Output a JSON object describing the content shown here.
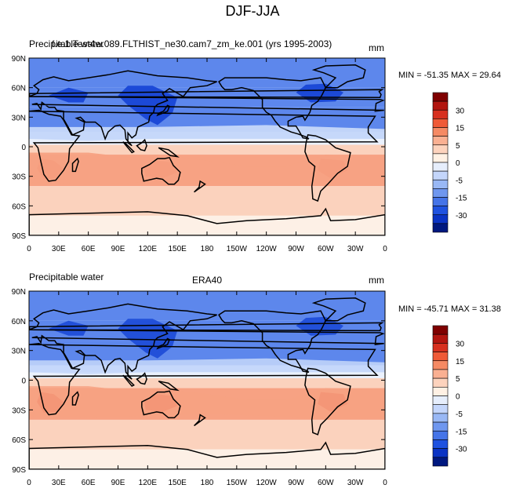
{
  "title": "DJF-JJA",
  "panels": [
    {
      "left_label": "Precipitable water",
      "case_label": "f.e.1.Test4w.089.FLTHIST_ne30.cam7_zm_ke.001 (yrs 1995-2003)",
      "case_label_display": "f.e.4w.089.FLTHIST_ne30.cam7_zm_ke.001 (yrs 1995-2003)",
      "units": "mm",
      "minmax": "MIN = -51.35 MAX =  29.64"
    },
    {
      "left_label": "Precipitable water",
      "case_label": "ERA40",
      "units": "mm",
      "minmax": "MIN = -45.71 MAX = 31.38"
    }
  ],
  "axes": {
    "lat_ticks": [
      "90N",
      "60N",
      "30N",
      "0",
      "30S",
      "60S",
      "90S"
    ],
    "lon_ticks": [
      "0",
      "30E",
      "60E",
      "90E",
      "120E",
      "150E",
      "180",
      "150W",
      "120W",
      "90W",
      "60W",
      "30W",
      "0"
    ]
  },
  "colorbar": {
    "labels": [
      "30",
      "15",
      "5",
      "0",
      "-5",
      "-15",
      "-30"
    ],
    "colors": [
      "#7f0000",
      "#b2150f",
      "#d7301f",
      "#ef5a37",
      "#f58a64",
      "#fab092",
      "#fdd3bd",
      "#fff1e4",
      "#e6eefc",
      "#c4d6fb",
      "#99b8f5",
      "#6f97ef",
      "#4574e8",
      "#1f52e0",
      "#0a33c4",
      "#00187f"
    ]
  },
  "colors": {
    "strong_positive": "#e0452a",
    "positive": "#f7a283",
    "weak_positive": "#fbd2bd",
    "weak_negative": "#c6d8fa",
    "negative": "#5d87ec",
    "strong_negative": "#1846d6"
  }
}
